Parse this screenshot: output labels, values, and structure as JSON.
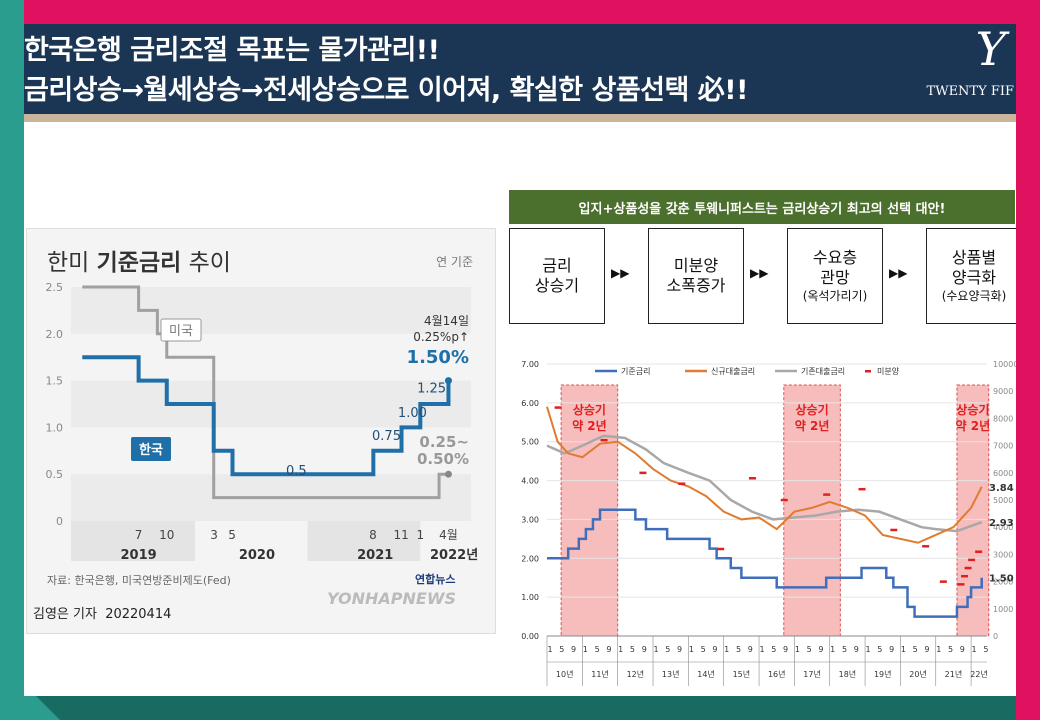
{
  "header": {
    "line1": "한국은행 금리조절 목표는 물가관리!!",
    "line2": "금리상승→월세상승→전세상승으로 이어져, 확실한 상품선택 必!!",
    "logo_mark": "Y",
    "logo_text": "TWENTY FIF"
  },
  "left_chart": {
    "title_pre": "한미 ",
    "title_bold": "기준금리",
    "title_post": " 추이",
    "basis": "연 기준",
    "source": "자료: 한국은행, 미국연방준비제도(Fed)",
    "reporter": "김영은 기자",
    "date": "20220414",
    "watermark": "YONHAPNEWS",
    "agency": "연합뉴스"
  },
  "flow": {
    "banner": "입지+상품성을 갖춘 투웨니퍼스트는 금리상승기 최고의 선택 대안!",
    "steps": [
      {
        "l1": "금리",
        "l2": "상승기",
        "sub": ""
      },
      {
        "l1": "미분양",
        "l2": "소폭증가",
        "sub": ""
      },
      {
        "l1": "수요층",
        "l2": "관망",
        "sub": "(옥석가리기)"
      },
      {
        "l1": "상품별",
        "l2": "양극화",
        "sub": "(수요양극화)"
      }
    ],
    "arrow": "▶▶"
  },
  "chart_data": [
    {
      "type": "line",
      "title": "한미 기준금리 추이",
      "ylim": [
        0,
        2.5
      ],
      "yticks": [
        "0",
        "0.5",
        "1.0",
        "1.5",
        "2.0",
        "2.5"
      ],
      "x_month_ticks": [
        "7",
        "10",
        "3",
        "5",
        "8",
        "11",
        "1",
        "4월"
      ],
      "x_year_labels": [
        "2019",
        "2020",
        "2021",
        "2022년"
      ],
      "series": [
        {
          "name": "한국",
          "color": "#1f6fa8",
          "points": [
            [
              "2019-01",
              1.75
            ],
            [
              "2019-07",
              1.5
            ],
            [
              "2019-10",
              1.25
            ],
            [
              "2020-03",
              0.75
            ],
            [
              "2020-05",
              0.5
            ],
            [
              "2021-08",
              0.75
            ],
            [
              "2021-11",
              1.0
            ],
            [
              "2022-01",
              1.25
            ],
            [
              "2022-04",
              1.5
            ]
          ]
        },
        {
          "name": "미국",
          "color": "#a0a0a0",
          "points": [
            [
              "2019-01",
              2.5
            ],
            [
              "2019-07",
              2.25
            ],
            [
              "2019-09",
              2.0
            ],
            [
              "2019-10",
              1.75
            ],
            [
              "2020-03",
              0.25
            ],
            [
              "2022-03",
              0.5
            ]
          ]
        }
      ],
      "annotations": {
        "korea_levels": [
          "0.5",
          "0.75",
          "1.00",
          "1.25"
        ],
        "latest_date": "4월14일",
        "latest_change": "0.25%p↑",
        "latest_korea": "1.50%",
        "latest_us_top": "0.25~",
        "latest_us_bottom": "0.50%"
      },
      "colors": {
        "korea": "#1f6fa8",
        "us": "#a0a0a0"
      }
    },
    {
      "type": "line",
      "ylim": [
        0,
        7
      ],
      "yticks": [
        "0.00",
        "1.00",
        "2.00",
        "3.00",
        "4.00",
        "5.00",
        "6.00",
        "7.00"
      ],
      "y2lim": [
        0,
        10000
      ],
      "y2ticks": [
        "0",
        "1000",
        "2000",
        "3000",
        "4000",
        "5000",
        "6000",
        "7000",
        "8000",
        "9000",
        "10000"
      ],
      "x_month_labels": [
        "1",
        "5",
        "9"
      ],
      "x_year_labels": [
        "10년",
        "11년",
        "12년",
        "13년",
        "14년",
        "15년",
        "16년",
        "17년",
        "18년",
        "19년",
        "20년",
        "21년",
        "22년"
      ],
      "legend": [
        "기준금리",
        "신규대출금리",
        "기존대출금리",
        "미분양"
      ],
      "series": [
        {
          "name": "기준금리",
          "color": "#3f6fba",
          "points": [
            [
              2010.0,
              2.0
            ],
            [
              2010.5,
              2.0
            ],
            [
              2010.6,
              2.25
            ],
            [
              2010.9,
              2.5
            ],
            [
              2011.1,
              2.75
            ],
            [
              2011.3,
              3.0
            ],
            [
              2011.5,
              3.25
            ],
            [
              2012.5,
              3.0
            ],
            [
              2012.8,
              2.75
            ],
            [
              2013.4,
              2.5
            ],
            [
              2014.6,
              2.25
            ],
            [
              2014.8,
              2.0
            ],
            [
              2015.2,
              1.75
            ],
            [
              2015.5,
              1.5
            ],
            [
              2016.5,
              1.25
            ],
            [
              2017.9,
              1.5
            ],
            [
              2018.9,
              1.75
            ],
            [
              2019.6,
              1.5
            ],
            [
              2019.8,
              1.25
            ],
            [
              2020.2,
              0.75
            ],
            [
              2020.4,
              0.5
            ],
            [
              2021.6,
              0.75
            ],
            [
              2021.9,
              1.0
            ],
            [
              2022.0,
              1.25
            ],
            [
              2022.3,
              1.5
            ]
          ]
        },
        {
          "name": "신규대출금리",
          "color": "#e07b30",
          "points": [
            [
              2010.0,
              5.9
            ],
            [
              2010.3,
              5.0
            ],
            [
              2010.6,
              4.7
            ],
            [
              2011.0,
              4.6
            ],
            [
              2011.5,
              4.95
            ],
            [
              2012.0,
              5.0
            ],
            [
              2012.5,
              4.7
            ],
            [
              2013.0,
              4.3
            ],
            [
              2013.5,
              4.0
            ],
            [
              2014.0,
              3.85
            ],
            [
              2014.5,
              3.6
            ],
            [
              2015.0,
              3.2
            ],
            [
              2015.5,
              3.0
            ],
            [
              2016.0,
              3.05
            ],
            [
              2016.5,
              2.75
            ],
            [
              2017.0,
              3.2
            ],
            [
              2017.5,
              3.3
            ],
            [
              2018.0,
              3.45
            ],
            [
              2018.5,
              3.3
            ],
            [
              2019.0,
              3.1
            ],
            [
              2019.5,
              2.6
            ],
            [
              2020.0,
              2.5
            ],
            [
              2020.5,
              2.4
            ],
            [
              2021.0,
              2.6
            ],
            [
              2021.5,
              2.8
            ],
            [
              2022.0,
              3.3
            ],
            [
              2022.3,
              3.84
            ]
          ]
        },
        {
          "name": "기존대출금리",
          "color": "#a8a8a8",
          "points": [
            [
              2010.0,
              4.9
            ],
            [
              2010.5,
              4.7
            ],
            [
              2011.0,
              4.9
            ],
            [
              2011.6,
              5.15
            ],
            [
              2012.2,
              5.1
            ],
            [
              2012.8,
              4.8
            ],
            [
              2013.3,
              4.45
            ],
            [
              2014.0,
              4.2
            ],
            [
              2014.6,
              4.0
            ],
            [
              2015.2,
              3.5
            ],
            [
              2015.8,
              3.2
            ],
            [
              2016.4,
              3.0
            ],
            [
              2017.0,
              3.05
            ],
            [
              2017.6,
              3.1
            ],
            [
              2018.2,
              3.2
            ],
            [
              2018.8,
              3.25
            ],
            [
              2019.4,
              3.2
            ],
            [
              2020.0,
              3.0
            ],
            [
              2020.6,
              2.8
            ],
            [
              2021.0,
              2.75
            ],
            [
              2021.6,
              2.7
            ],
            [
              2022.3,
              2.93
            ]
          ]
        },
        {
          "name": "미분양",
          "color": "#e02020",
          "points": [
            [
              2010.3,
              8400
            ],
            [
              2011.6,
              7200
            ],
            [
              2012.7,
              6000
            ],
            [
              2013.8,
              5600
            ],
            [
              2014.9,
              3200
            ],
            [
              2015.8,
              5800
            ],
            [
              2016.7,
              5000
            ],
            [
              2017.9,
              5200
            ],
            [
              2018.9,
              5400
            ],
            [
              2019.8,
              3900
            ],
            [
              2020.7,
              3300
            ],
            [
              2021.2,
              2000
            ],
            [
              2021.7,
              1900
            ],
            [
              2021.8,
              2200
            ],
            [
              2021.9,
              2500
            ],
            [
              2022.0,
              2800
            ],
            [
              2022.2,
              3100
            ]
          ]
        }
      ],
      "shaded_periods": [
        [
          2010.4,
          2012.0
        ],
        [
          2016.7,
          2018.3
        ],
        [
          2021.6,
          2022.5
        ]
      ],
      "shaded_label_l1": "상승기",
      "shaded_label_l2": "약 2년",
      "end_labels": {
        "new": "3.84",
        "existing": "2.93",
        "base": "1.50"
      },
      "colors": {
        "shade": "#f4a7a7",
        "label": "#e02020"
      }
    }
  ]
}
